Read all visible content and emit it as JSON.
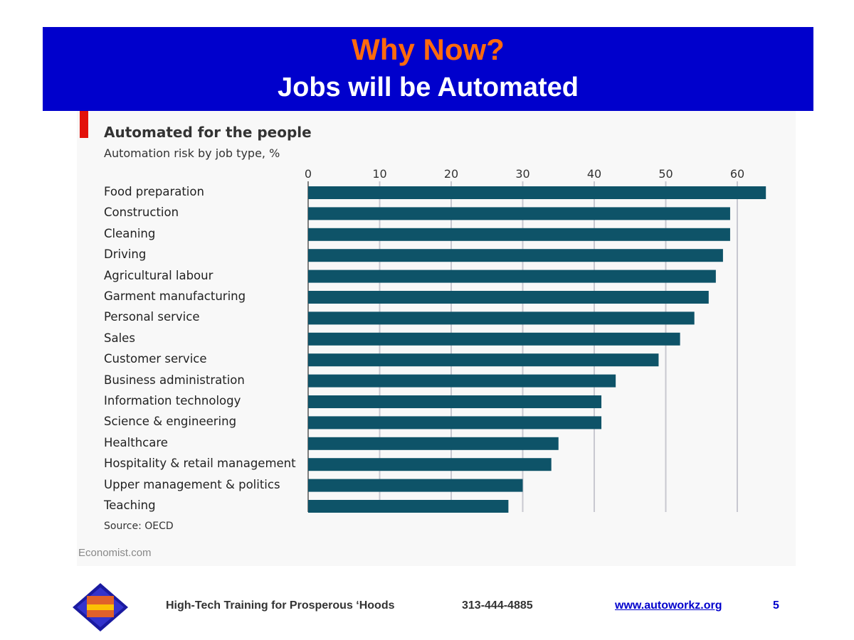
{
  "banner": {
    "title": "Why Now?",
    "subtitle": "Jobs will be Automated"
  },
  "chart_data": {
    "type": "bar",
    "orientation": "horizontal",
    "title": "Automated for the people",
    "subtitle": "Automation risk by job type, %",
    "source": "Source: OECD",
    "categories": [
      "Food preparation",
      "Construction",
      "Cleaning",
      "Driving",
      "Agricultural labour",
      "Garment manufacturing",
      "Personal service",
      "Sales",
      "Customer service",
      "Business administration",
      "Information technology",
      "Science & engineering",
      "Healthcare",
      "Hospitality & retail management",
      "Upper management & politics",
      "Teaching"
    ],
    "values": [
      64,
      59,
      59,
      58,
      57,
      56,
      54,
      52,
      49,
      43,
      41,
      41,
      35,
      34,
      30,
      28
    ],
    "xlim": [
      0,
      65
    ],
    "xticks": [
      0,
      10,
      20,
      30,
      40,
      50,
      60
    ],
    "tick_labels": [
      "0",
      "10",
      "20",
      "30",
      "40",
      "50",
      "60"
    ],
    "axis_position": "top",
    "grid": true,
    "bar_color": "#0e5368",
    "grid_color": "#c8c8d0"
  },
  "attribution": "Economist.com",
  "footer": {
    "tagline": "High-Tech Training for Prosperous ‘Hoods",
    "phone": "313-444-4885",
    "website": "www.autoworkz.org",
    "page_number": "5",
    "logo_icon": "autoworkz-diamond-logo-icon"
  },
  "colors": {
    "banner_bg": "#0000cc",
    "title_orange": "#ff6a0d",
    "accent_red": "#e3120b",
    "link_blue": "#0000cc"
  }
}
